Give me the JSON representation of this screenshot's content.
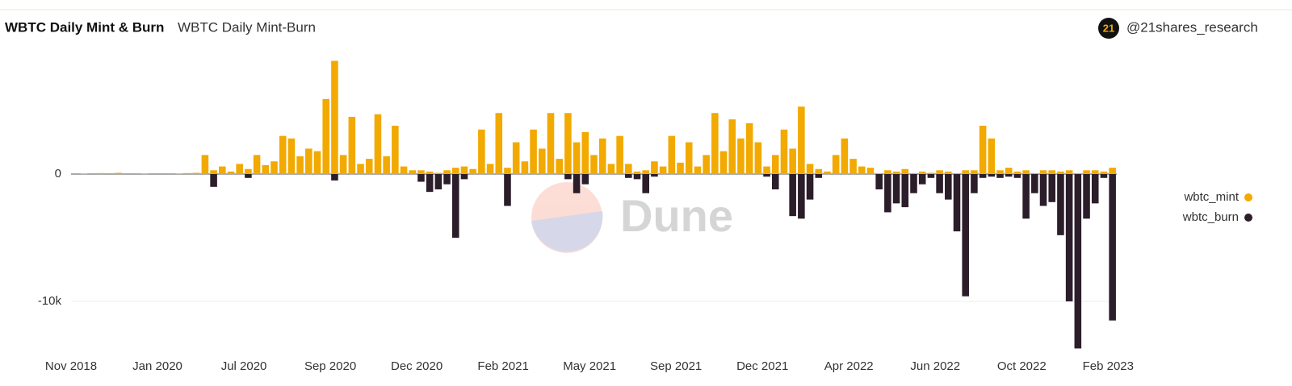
{
  "header": {
    "title": "WBTC Daily Mint & Burn",
    "subtitle": "WBTC Daily Mint-Burn",
    "avatar": "21",
    "author": "@21shares_research",
    "watermark": "Dune"
  },
  "chart_data": {
    "type": "bar",
    "categories": [
      "Nov 2018",
      null,
      null,
      null,
      null,
      null,
      null,
      null,
      null,
      null,
      "Jan 2020",
      null,
      null,
      null,
      null,
      null,
      null,
      null,
      null,
      null,
      "Jul 2020",
      null,
      null,
      null,
      null,
      null,
      null,
      null,
      null,
      null,
      "Sep 2020",
      null,
      null,
      null,
      null,
      null,
      null,
      null,
      null,
      null,
      "Dec 2020",
      null,
      null,
      null,
      null,
      null,
      null,
      null,
      null,
      null,
      "Feb 2021",
      null,
      null,
      null,
      null,
      null,
      null,
      null,
      null,
      null,
      "May 2021",
      null,
      null,
      null,
      null,
      null,
      null,
      null,
      null,
      null,
      "Sep 2021",
      null,
      null,
      null,
      null,
      null,
      null,
      null,
      null,
      null,
      "Dec 2021",
      null,
      null,
      null,
      null,
      null,
      null,
      null,
      null,
      null,
      "Apr 2022",
      null,
      null,
      null,
      null,
      null,
      null,
      null,
      null,
      null,
      "Jun 2022",
      null,
      null,
      null,
      null,
      null,
      null,
      null,
      null,
      null,
      "Oct 2022",
      null,
      null,
      null,
      null,
      null,
      null,
      null,
      null,
      null,
      "Feb 2023"
    ],
    "series": [
      {
        "name": "wbtc_mint",
        "color": "#f2a900",
        "values": [
          0,
          50,
          0,
          80,
          0,
          100,
          0,
          0,
          50,
          0,
          0,
          0,
          50,
          80,
          100,
          1500,
          300,
          600,
          200,
          800,
          400,
          1500,
          700,
          1000,
          3000,
          2800,
          1400,
          2000,
          1800,
          5900,
          8900,
          1500,
          4500,
          800,
          1200,
          4700,
          1400,
          3800,
          600,
          300,
          300,
          200,
          100,
          300,
          500,
          600,
          400,
          3500,
          800,
          4800,
          500,
          2500,
          1000,
          3500,
          2000,
          4800,
          1200,
          4800,
          2500,
          3300,
          1500,
          2800,
          800,
          3000,
          800,
          200,
          300,
          1000,
          600,
          3000,
          900,
          2500,
          600,
          1500,
          4800,
          1800,
          4300,
          2800,
          4000,
          2500,
          600,
          1500,
          3500,
          2000,
          5300,
          800,
          400,
          200,
          1500,
          2800,
          1200,
          600,
          500,
          0,
          300,
          200,
          400,
          0,
          200,
          100,
          300,
          200,
          0,
          300,
          300,
          3800,
          2800,
          300,
          500,
          200,
          300,
          0,
          300,
          300,
          200,
          300,
          0,
          300,
          300,
          200,
          500
        ]
      },
      {
        "name": "wbtc_burn",
        "color": "#2b1d2a",
        "values": [
          0,
          0,
          0,
          0,
          0,
          0,
          0,
          0,
          0,
          0,
          0,
          0,
          0,
          0,
          0,
          0,
          -1000,
          0,
          0,
          0,
          -300,
          0,
          0,
          0,
          0,
          0,
          0,
          0,
          0,
          0,
          -500,
          0,
          0,
          0,
          0,
          0,
          0,
          0,
          0,
          0,
          -600,
          -1400,
          -1200,
          -800,
          -5000,
          -400,
          0,
          0,
          0,
          0,
          -2500,
          0,
          0,
          0,
          0,
          0,
          0,
          -400,
          -1500,
          -800,
          0,
          0,
          0,
          0,
          -300,
          -400,
          -1500,
          -200,
          0,
          0,
          0,
          0,
          0,
          0,
          0,
          0,
          0,
          0,
          0,
          0,
          -200,
          -1200,
          0,
          -3300,
          -3500,
          -2000,
          -300,
          0,
          0,
          0,
          0,
          0,
          0,
          -1200,
          -3000,
          -2300,
          -2600,
          -1500,
          -800,
          -300,
          -1500,
          -2000,
          -4500,
          -9600,
          -1500,
          -300,
          -200,
          -300,
          -200,
          -300,
          -3500,
          -1500,
          -2500,
          -2200,
          -4800,
          -10000,
          -13700,
          -3500,
          -2300,
          -300,
          -11500
        ]
      }
    ],
    "ylim": [
      -13800,
      9500
    ],
    "yticks": [
      {
        "value": -10000,
        "label": "-10k"
      },
      0
    ],
    "grid": true,
    "legend": "right"
  }
}
